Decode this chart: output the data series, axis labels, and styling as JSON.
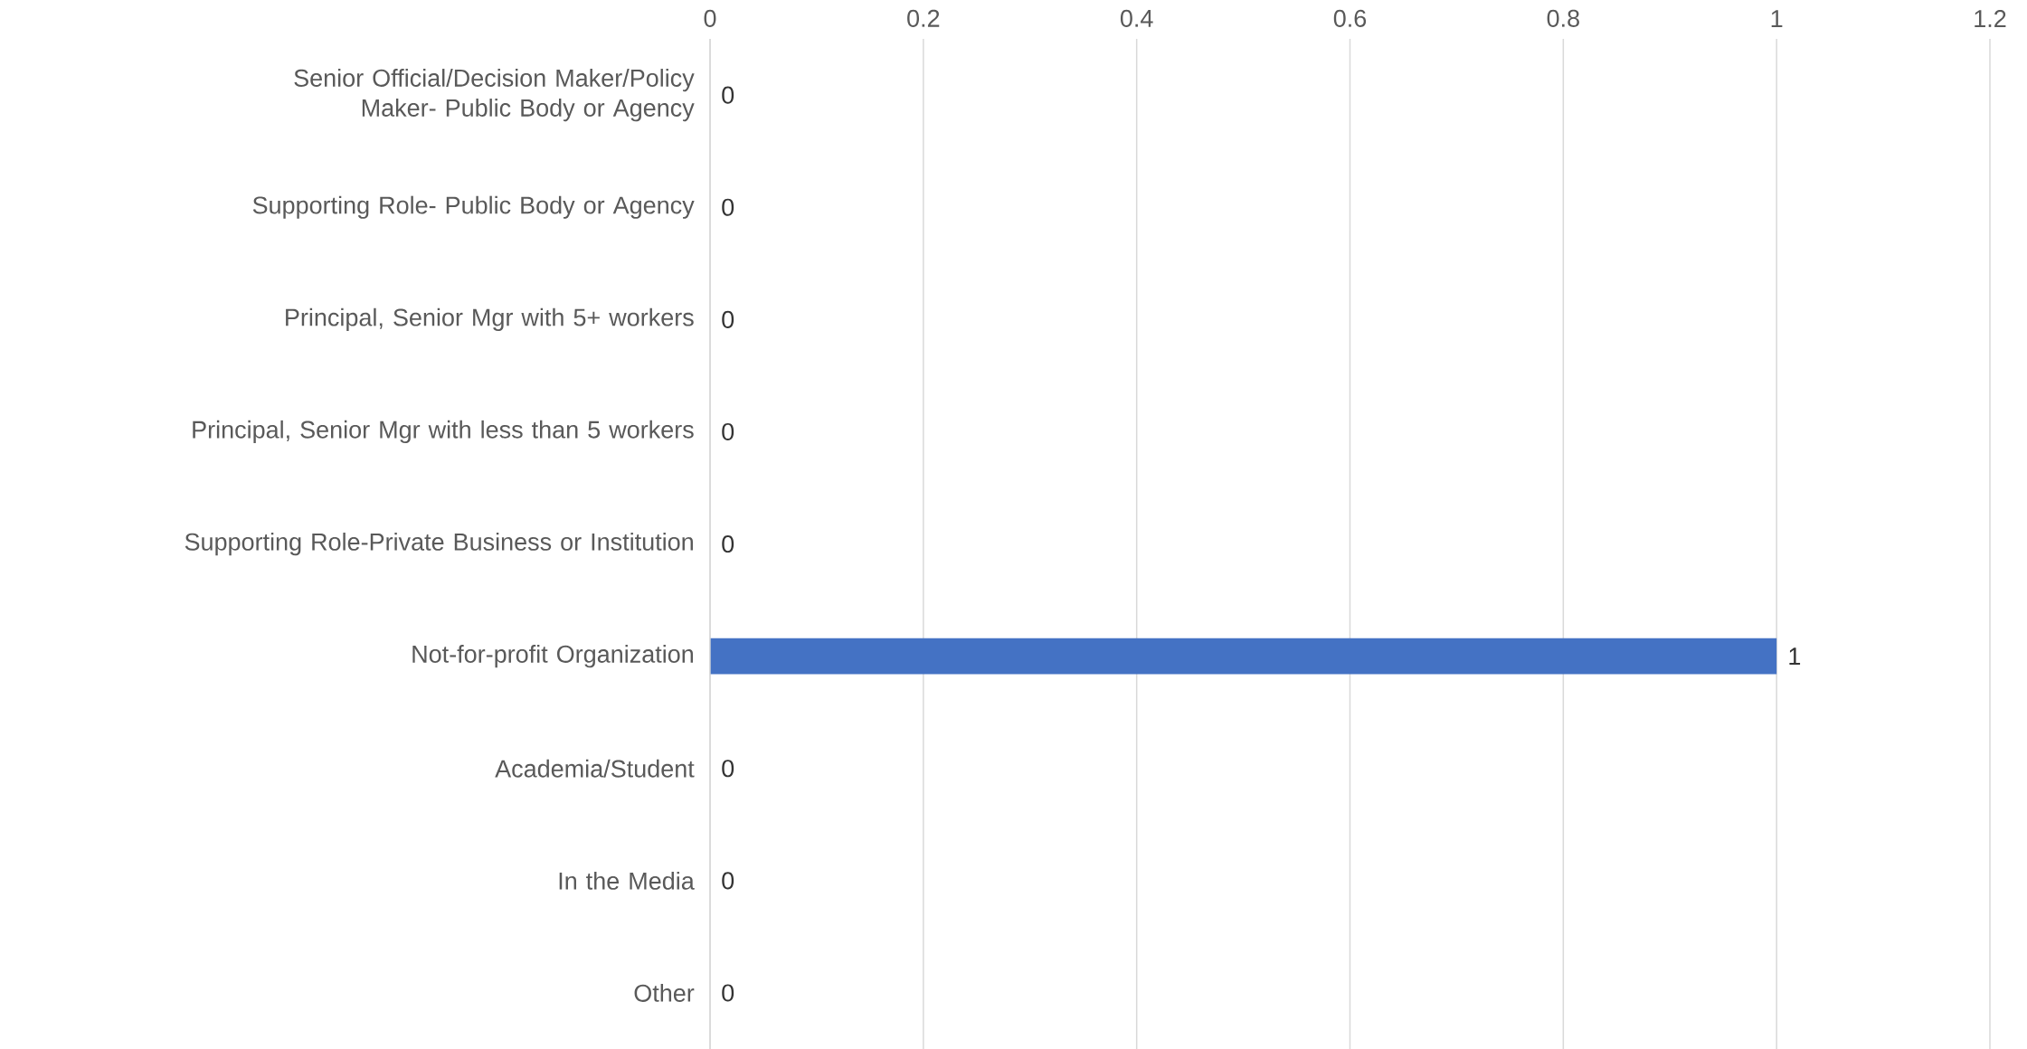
{
  "chart_data": {
    "type": "bar",
    "orientation": "horizontal",
    "categories": [
      "Senior Official/Decision Maker/Policy Maker- Public Body or Agency",
      "Supporting Role- Public Body or Agency",
      "Principal, Senior Mgr with 5+ workers",
      "Principal, Senior Mgr with less than 5 workers",
      "Supporting Role-Private Business or Institution",
      "Not-for-profit Organization",
      "Academia/Student",
      "In the Media",
      "Other"
    ],
    "values": [
      0,
      0,
      0,
      0,
      0,
      1,
      0,
      0,
      0
    ],
    "color": "#4472c4",
    "xlim": [
      0,
      1.2
    ],
    "xticks": [
      0,
      0.2,
      0.4,
      0.6,
      0.8,
      1,
      1.2
    ],
    "grid": "x",
    "data_labels": true
  }
}
